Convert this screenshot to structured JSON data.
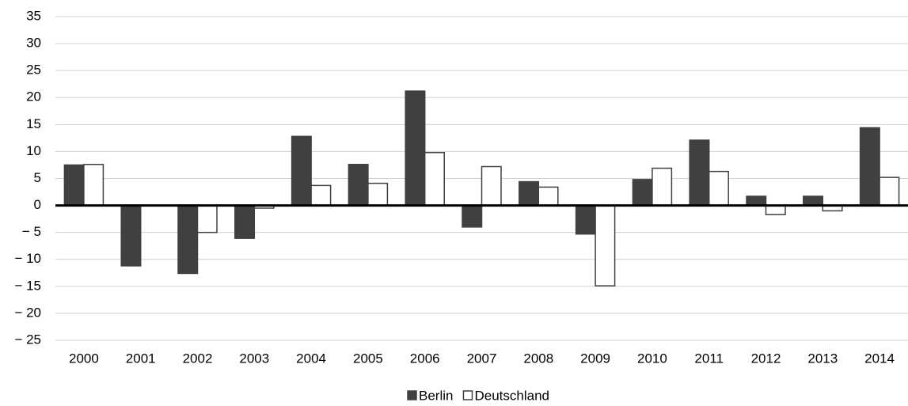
{
  "chart_data": {
    "type": "bar",
    "categories": [
      "2000",
      "2001",
      "2002",
      "2003",
      "2004",
      "2005",
      "2006",
      "2007",
      "2008",
      "2009",
      "2010",
      "2011",
      "2012",
      "2013",
      "2014"
    ],
    "series": [
      {
        "name": "Berlin",
        "color": "#404040",
        "values": [
          7.5,
          -11.2,
          -12.6,
          -6.1,
          12.8,
          7.6,
          21.2,
          -4,
          4.4,
          -5.3,
          4.8,
          12.1,
          1.7,
          1.7,
          14.4
        ]
      },
      {
        "name": "Deutschland",
        "color": "#ffffff",
        "values": [
          7.6,
          0,
          -5,
          -0.5,
          3.7,
          4.1,
          9.8,
          7.2,
          3.4,
          -14.9,
          6.9,
          6.3,
          -1.7,
          -1,
          5.2
        ]
      }
    ],
    "ylim": [
      -25,
      35
    ],
    "yticks": [
      {
        "value": -25,
        "label": "− 25"
      },
      {
        "value": -20,
        "label": "− 20"
      },
      {
        "value": -15,
        "label": "− 15"
      },
      {
        "value": -10,
        "label": "− 10"
      },
      {
        "value": -5,
        "label": "− 5"
      },
      0,
      5,
      10,
      15,
      20,
      25,
      30,
      35
    ],
    "grid": true,
    "legend": "bottom"
  }
}
